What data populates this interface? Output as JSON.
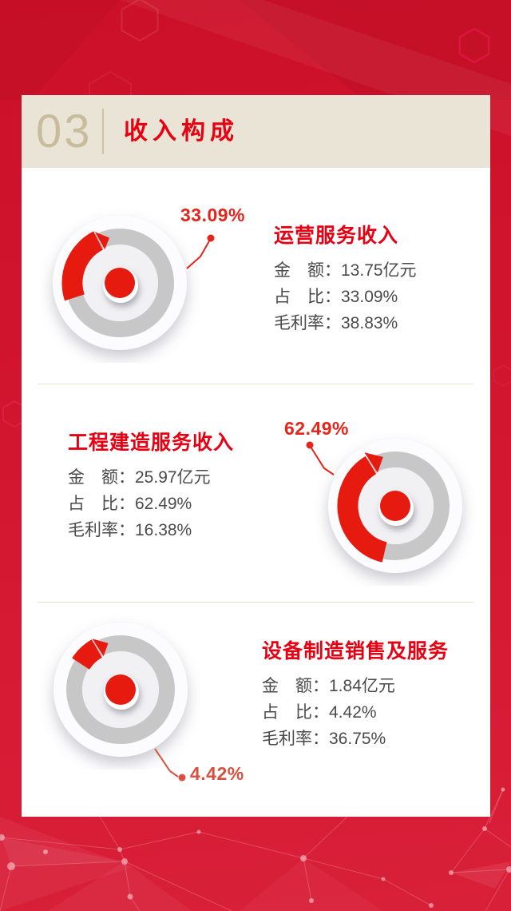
{
  "header": {
    "number": "03",
    "title": "收入构成"
  },
  "sections": [
    {
      "title": "运营服务收入",
      "percent_label": "33.09%",
      "rows": [
        {
          "k": "金　额：",
          "v": "13.75亿元"
        },
        {
          "k": "占　比：",
          "v": "33.09%"
        },
        {
          "k": "毛利率：",
          "v": "38.83%"
        }
      ]
    },
    {
      "title": "工程建造服务收入",
      "percent_label": "62.49%",
      "rows": [
        {
          "k": "金　额：",
          "v": "25.97亿元"
        },
        {
          "k": "占　比：",
          "v": "62.49%"
        },
        {
          "k": "毛利率：",
          "v": "16.38%"
        }
      ]
    },
    {
      "title": "设备制造销售及服务",
      "percent_label": "4.42%",
      "rows": [
        {
          "k": "金　额：",
          "v": "1.84亿元"
        },
        {
          "k": "占　比：",
          "v": "4.42%"
        },
        {
          "k": "毛利率：",
          "v": "36.75%"
        }
      ]
    }
  ],
  "colors": {
    "background_red": "#d2152f",
    "accent_red": "#e71a10",
    "title_red": "#e60012",
    "header_beige": "#eae4d6",
    "number_tan": "#c9bc9c",
    "ring_gray": "#c7c7c8",
    "body_gray": "#4a4a4a",
    "callout_red": "#e3251b",
    "callout_red_light": "#d9503e",
    "divider_beige": "#e8e1cd"
  },
  "chart_data": {
    "type": "pie",
    "title": "收入构成",
    "categories": [
      "运营服务收入",
      "工程建造服务收入",
      "设备制造销售及服务"
    ],
    "series": [
      {
        "name": "金额(亿元)",
        "values": [
          13.75,
          25.97,
          1.84
        ]
      },
      {
        "name": "占比(%)",
        "values": [
          33.09,
          62.49,
          4.42
        ]
      },
      {
        "name": "毛利率(%)",
        "values": [
          38.83,
          16.38,
          36.75
        ]
      }
    ],
    "annotations": [
      "33.09%",
      "62.49%",
      "4.42%"
    ],
    "legend_position": "none"
  }
}
